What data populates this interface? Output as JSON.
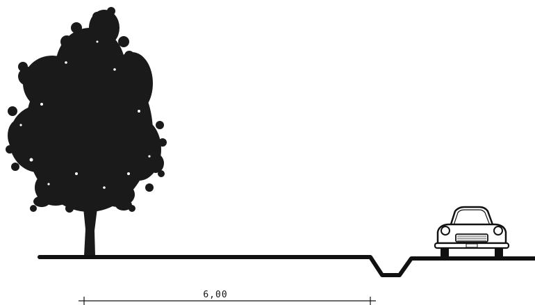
{
  "drawing": {
    "type": "street cross-section",
    "elements": [
      "tree",
      "ground-line",
      "drainage-ditch",
      "car"
    ],
    "line_color": "#111111",
    "fill_color": "#1a1a1a",
    "background": "#ffffff"
  },
  "dimension": {
    "label": "6,00"
  }
}
